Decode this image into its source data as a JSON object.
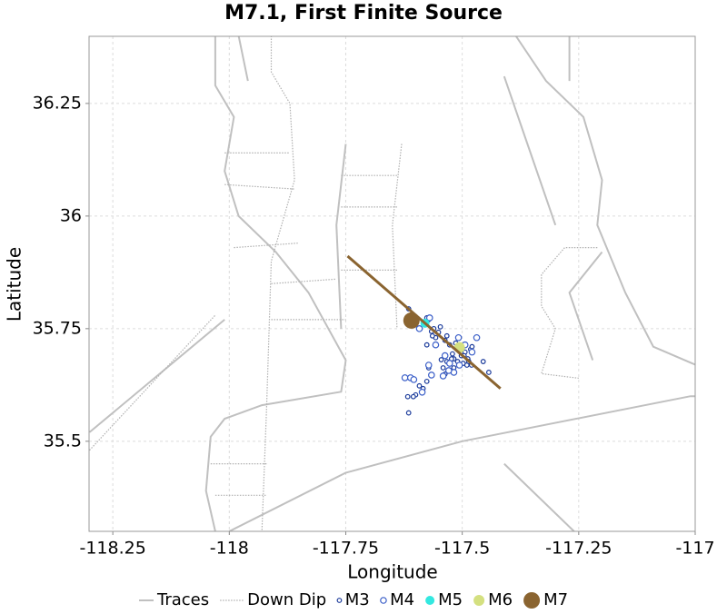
{
  "chart_data": {
    "type": "scatter",
    "title": "M7.1, First Finite Source",
    "x_label": "Longitude",
    "y_label": "Latitude",
    "xlim": [
      -118.301,
      -117.0
    ],
    "ylim": [
      35.3,
      36.399
    ],
    "xticks": [
      -118.25,
      -118,
      -117.75,
      -117.5,
      -117.25,
      -117
    ],
    "yticks": [
      35.5,
      35.75,
      36,
      36.25
    ],
    "grid": true,
    "legend": "bottom",
    "series": [
      {
        "name": "Traces",
        "style": "line",
        "color": "#c0c0c0",
        "x": [
          -118.03,
          -118.03,
          -117.99,
          -118.01,
          -117.98,
          -117.9,
          -117.83,
          -117.75,
          -117.76,
          -117.93,
          -118.01,
          -118.04,
          -118.05,
          -118.03,
          null,
          -117.98,
          -117.96,
          null,
          -117.385,
          -117.32,
          -117.24,
          -117.2,
          -117.21,
          -117.15,
          -117.09,
          -117.0,
          null,
          -117.41,
          -117.36,
          -117.3,
          null,
          -117.27,
          -117.27,
          null,
          -118.0,
          -117.75,
          -117.5,
          -117.01,
          -117.0,
          null,
          -117.41,
          -117.26,
          null,
          -118.3,
          -118.01,
          null,
          -117.75,
          -117.77,
          -117.76,
          null,
          -117.2,
          -117.27,
          -117.22
        ],
        "y": [
          36.4,
          36.29,
          36.22,
          36.1,
          36.0,
          35.92,
          35.83,
          35.68,
          35.61,
          35.58,
          35.55,
          35.51,
          35.39,
          35.3,
          null,
          36.4,
          36.3,
          null,
          36.4,
          36.3,
          36.22,
          36.08,
          35.98,
          35.83,
          35.71,
          35.67,
          null,
          36.31,
          36.16,
          35.98,
          null,
          36.4,
          36.3,
          null,
          35.3,
          35.43,
          35.5,
          35.6,
          35.6,
          null,
          35.45,
          35.3,
          null,
          35.52,
          35.77,
          null,
          36.16,
          35.98,
          35.75,
          null,
          35.92,
          35.83,
          35.68
        ]
      },
      {
        "name": "Down Dip",
        "style": "dotted",
        "color": "#b0b0b0",
        "x": [
          -117.91,
          -117.91,
          -117.87,
          -117.86,
          -117.91,
          -117.92,
          -117.93,
          null,
          -117.63,
          -117.65,
          -117.64,
          null,
          -118.01,
          -117.87,
          null,
          -118.01,
          -117.86,
          null,
          -117.99,
          -117.85,
          null,
          -117.91,
          -117.77,
          null,
          -117.91,
          -117.75,
          null,
          -117.76,
          -117.64,
          null,
          -117.76,
          -117.64,
          null,
          -117.76,
          -117.64,
          null,
          -118.3,
          -118.03,
          null,
          -117.21,
          -117.28,
          -117.33,
          -117.33,
          -117.3,
          -117.33,
          -117.25,
          null,
          -118.04,
          -117.92,
          null,
          -118.03,
          -117.92
        ],
        "y": [
          36.4,
          36.32,
          36.25,
          36.08,
          35.9,
          35.57,
          35.3,
          null,
          36.16,
          35.98,
          35.75,
          null,
          36.14,
          36.14,
          null,
          36.07,
          36.06,
          null,
          35.93,
          35.94,
          null,
          35.85,
          35.86,
          null,
          35.77,
          35.77,
          null,
          36.09,
          36.09,
          null,
          36.02,
          36.02,
          null,
          35.88,
          35.88,
          null,
          35.48,
          35.78,
          null,
          35.93,
          35.93,
          35.87,
          35.8,
          35.75,
          35.65,
          35.64,
          null,
          35.45,
          35.45,
          null,
          35.38,
          35.38
        ]
      },
      {
        "name": "M3",
        "style": "ring",
        "color": "#1a3a9a",
        "marker_size": 2.3,
        "x": [
          -117.615,
          -117.576,
          -117.572,
          -117.566,
          -117.557,
          -117.547,
          -117.537,
          -117.527,
          -117.521,
          -117.518,
          -117.508,
          -117.502,
          -117.494,
          -117.488,
          -117.482,
          -117.479,
          -117.498,
          -117.518,
          -117.527,
          -117.537,
          -117.541,
          -117.561,
          -117.551,
          -117.564,
          -117.533,
          -117.514,
          -117.49,
          -117.486,
          -117.576,
          -117.572,
          -117.592,
          -117.6,
          -117.605,
          -117.617,
          -117.584,
          -117.576,
          -117.615,
          -117.455,
          -117.443,
          -117.51,
          -117.496,
          -117.523,
          -117.545,
          -117.48,
          -117.533
        ],
        "y": [
          35.794,
          35.774,
          35.77,
          35.744,
          35.73,
          35.754,
          35.724,
          35.714,
          35.694,
          35.683,
          35.704,
          35.69,
          35.698,
          35.683,
          35.704,
          35.71,
          35.673,
          35.663,
          35.657,
          35.649,
          35.663,
          35.75,
          35.742,
          35.734,
          35.734,
          35.718,
          35.669,
          35.677,
          35.714,
          35.663,
          35.623,
          35.603,
          35.599,
          35.599,
          35.617,
          35.633,
          35.563,
          35.677,
          35.653,
          35.677,
          35.69,
          35.683,
          35.681,
          35.669,
          35.677
        ]
      },
      {
        "name": "M4",
        "style": "ring",
        "color": "#3a5ec8",
        "marker_size": 3.2,
        "x": [
          -117.57,
          -117.592,
          -117.58,
          -117.557,
          -117.572,
          -117.623,
          -117.611,
          -117.604,
          -117.537,
          -117.527,
          -117.518,
          -117.506,
          -117.479,
          -117.469,
          -117.494,
          -117.566,
          -117.541,
          -117.529,
          -117.586,
          -117.508
        ],
        "y": [
          35.774,
          35.75,
          35.762,
          35.714,
          35.669,
          35.641,
          35.641,
          35.637,
          35.69,
          35.673,
          35.653,
          35.669,
          35.698,
          35.73,
          35.714,
          35.647,
          35.645,
          35.657,
          35.609,
          35.73
        ]
      },
      {
        "name": "M5",
        "style": "dot",
        "color": "#33e8e0",
        "marker_size": 5,
        "x": [
          -117.58
        ],
        "y": [
          35.762
        ]
      },
      {
        "name": "M6",
        "style": "dot",
        "color": "#d4e080",
        "marker_size": 6,
        "x": [
          -117.506
        ],
        "y": [
          35.708
        ]
      },
      {
        "name": "M7",
        "style": "dot",
        "color": "#8a6430",
        "marker_size": 9,
        "x": [
          -117.609
        ],
        "y": [
          35.768
        ],
        "segment_x": [
          -117.746,
          -117.418
        ],
        "segment_y": [
          35.911,
          35.617
        ]
      }
    ]
  }
}
